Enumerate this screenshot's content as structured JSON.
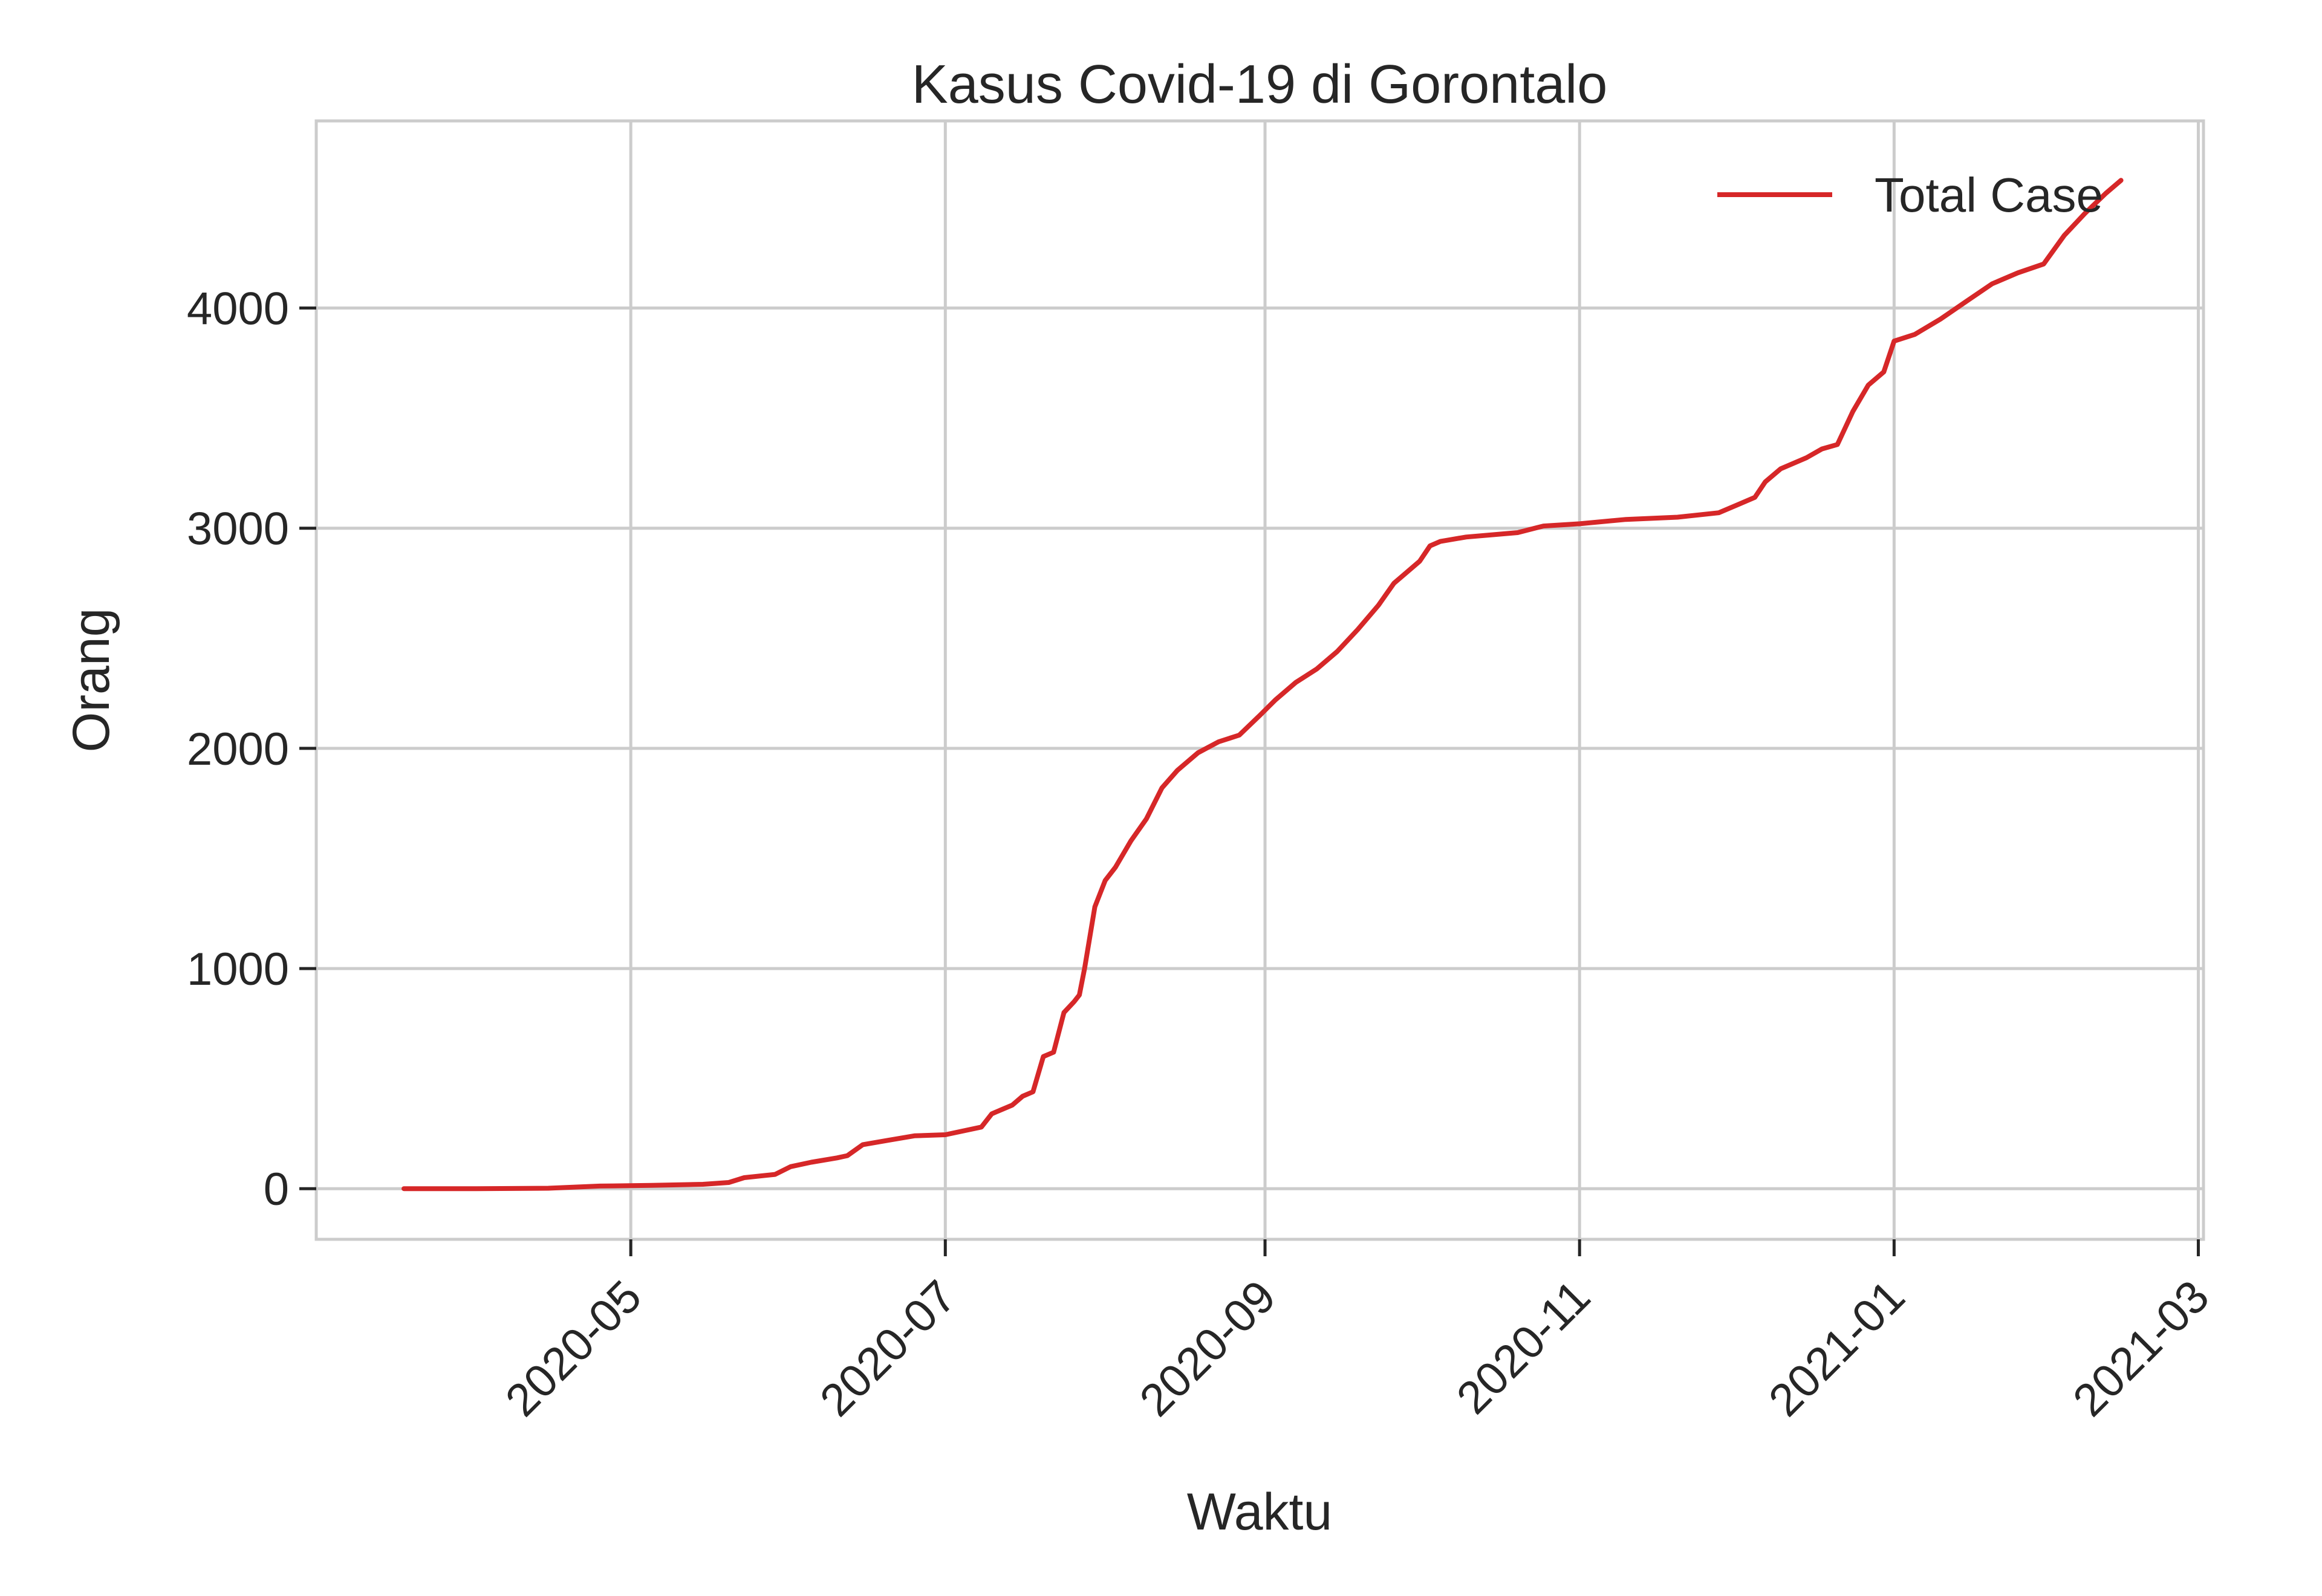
{
  "chart_data": {
    "type": "line",
    "title": "Kasus Covid-19 di Gorontalo",
    "xlabel": "Waktu",
    "ylabel": "Orang",
    "xlim": [
      "2020-03-01",
      "2021-03-02"
    ],
    "ylim": [
      -230,
      4850
    ],
    "x_ticks": [
      "2020-05",
      "2020-07",
      "2020-09",
      "2020-11",
      "2021-01",
      "2021-03"
    ],
    "x_tick_dates": [
      "2020-05-01",
      "2020-07-01",
      "2020-09-01",
      "2020-11-01",
      "2021-01-01",
      "2021-03-01"
    ],
    "y_ticks": [
      0,
      1000,
      2000,
      3000,
      4000
    ],
    "y_tick_labels": [
      "0",
      "1000",
      "2000",
      "3000",
      "4000"
    ],
    "grid": true,
    "legend": "top-right",
    "color": "#d62728",
    "series": [
      {
        "name": "Total Case",
        "x": [
          "2020-03-18",
          "2020-04-01",
          "2020-04-15",
          "2020-04-25",
          "2020-05-05",
          "2020-05-15",
          "2020-05-20",
          "2020-05-23",
          "2020-05-29",
          "2020-06-01",
          "2020-06-05",
          "2020-06-10",
          "2020-06-12",
          "2020-06-15",
          "2020-06-20",
          "2020-06-25",
          "2020-07-01",
          "2020-07-08",
          "2020-07-10",
          "2020-07-14",
          "2020-07-16",
          "2020-07-18",
          "2020-07-20",
          "2020-07-22",
          "2020-07-24",
          "2020-07-26",
          "2020-07-27",
          "2020-07-28",
          "2020-07-30",
          "2020-08-01",
          "2020-08-03",
          "2020-08-06",
          "2020-08-09",
          "2020-08-12",
          "2020-08-15",
          "2020-08-19",
          "2020-08-23",
          "2020-08-27",
          "2020-08-31",
          "2020-09-03",
          "2020-09-07",
          "2020-09-11",
          "2020-09-15",
          "2020-09-19",
          "2020-09-23",
          "2020-09-26",
          "2020-09-28",
          "2020-10-01",
          "2020-10-03",
          "2020-10-05",
          "2020-10-10",
          "2020-10-20",
          "2020-10-25",
          "2020-11-01",
          "2020-11-10",
          "2020-11-20",
          "2020-11-28",
          "2020-12-02",
          "2020-12-05",
          "2020-12-07",
          "2020-12-10",
          "2020-12-15",
          "2020-12-18",
          "2020-12-21",
          "2020-12-24",
          "2020-12-27",
          "2020-12-30",
          "2021-01-01",
          "2021-01-05",
          "2021-01-10",
          "2021-01-15",
          "2021-01-20",
          "2021-01-25",
          "2021-01-30",
          "2021-02-03",
          "2021-02-07",
          "2021-02-11",
          "2021-02-14"
        ],
        "y": [
          0,
          0,
          2,
          12,
          15,
          20,
          28,
          50,
          65,
          100,
          120,
          140,
          150,
          200,
          220,
          240,
          245,
          280,
          340,
          380,
          420,
          440,
          600,
          620,
          800,
          850,
          880,
          1000,
          1280,
          1400,
          1460,
          1580,
          1680,
          1820,
          1900,
          1980,
          2030,
          2060,
          2150,
          2220,
          2300,
          2360,
          2440,
          2540,
          2650,
          2750,
          2790,
          2850,
          2920,
          2940,
          2960,
          2980,
          3010,
          3020,
          3040,
          3050,
          3070,
          3110,
          3140,
          3210,
          3270,
          3320,
          3360,
          3380,
          3530,
          3650,
          3710,
          3850,
          3880,
          3950,
          4030,
          4110,
          4160,
          4200,
          4330,
          4430,
          4520,
          4580
        ]
      }
    ]
  }
}
